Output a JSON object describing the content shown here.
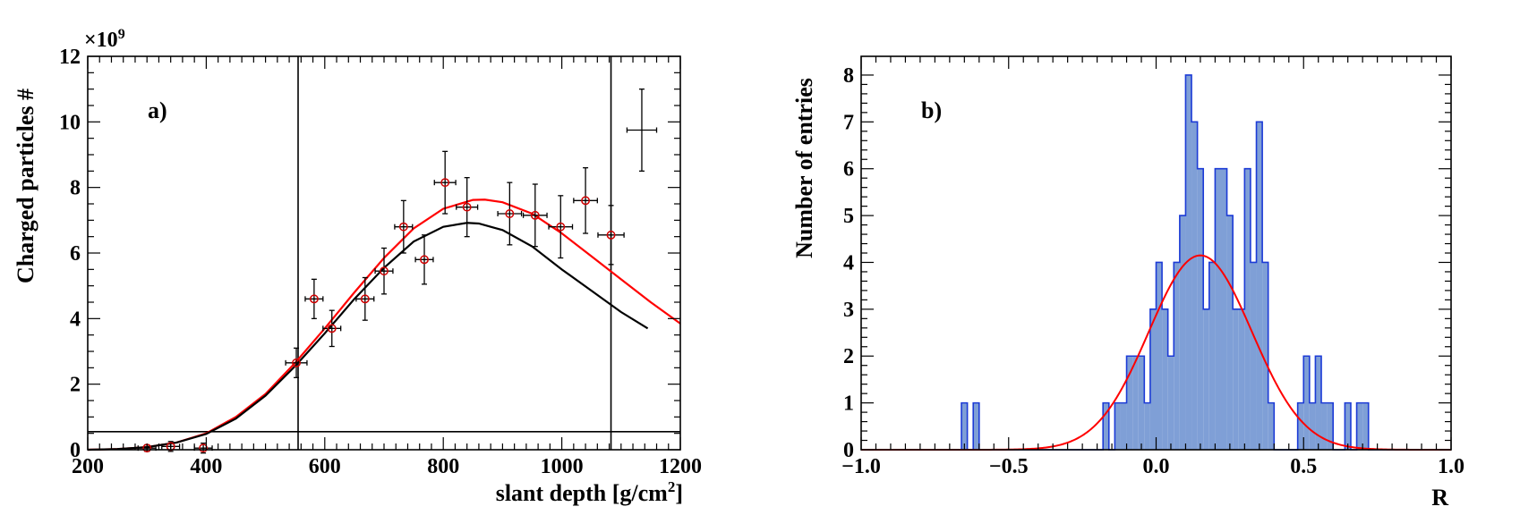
{
  "chart_data": [
    {
      "type": "scatter",
      "panel_label": "a)",
      "xlabel_main": "slant depth [g/cm",
      "xlabel_sup": "2",
      "xlabel_end": "]",
      "ylabel": "Charged particles #",
      "y_multiplier": "×10",
      "y_multiplier_exp": "9",
      "xlim": [
        200,
        1200
      ],
      "ylim": [
        0,
        12
      ],
      "x_ticks": [
        200,
        400,
        600,
        800,
        1000,
        1200
      ],
      "x_tick_labels": [
        "200",
        "400",
        "600",
        "800",
        "1000",
        "1200"
      ],
      "y_ticks": [
        0,
        2,
        4,
        6,
        8,
        10,
        12
      ],
      "y_tick_labels": [
        "0",
        "2",
        "4",
        "6",
        "8",
        "10",
        "12"
      ],
      "vertical_lines": [
        555,
        1083
      ],
      "horizontal_line": 0.55,
      "series": [
        {
          "name": "data",
          "color": "#d00000",
          "points": [
            {
              "x": 300,
              "y": 0.05,
              "xerr": 15,
              "yerr": 0.1
            },
            {
              "x": 340,
              "y": 0.1,
              "xerr": 15,
              "yerr": 0.15
            },
            {
              "x": 395,
              "y": 0.05,
              "xerr": 15,
              "yerr": 0.15
            },
            {
              "x": 552,
              "y": 2.65,
              "xerr": 18,
              "yerr": 0.45
            },
            {
              "x": 582,
              "y": 4.6,
              "xerr": 15,
              "yerr": 0.6
            },
            {
              "x": 612,
              "y": 3.7,
              "xerr": 15,
              "yerr": 0.55
            },
            {
              "x": 668,
              "y": 4.6,
              "xerr": 15,
              "yerr": 0.65
            },
            {
              "x": 700,
              "y": 5.45,
              "xerr": 15,
              "yerr": 0.7
            },
            {
              "x": 733,
              "y": 6.8,
              "xerr": 15,
              "yerr": 0.8
            },
            {
              "x": 768,
              "y": 5.8,
              "xerr": 15,
              "yerr": 0.75
            },
            {
              "x": 803,
              "y": 8.15,
              "xerr": 18,
              "yerr": 0.95
            },
            {
              "x": 840,
              "y": 7.4,
              "xerr": 18,
              "yerr": 0.9
            },
            {
              "x": 912,
              "y": 7.2,
              "xerr": 20,
              "yerr": 0.95
            },
            {
              "x": 955,
              "y": 7.15,
              "xerr": 20,
              "yerr": 0.95
            },
            {
              "x": 998,
              "y": 6.8,
              "xerr": 20,
              "yerr": 0.95
            },
            {
              "x": 1040,
              "y": 7.6,
              "xerr": 20,
              "yerr": 1.0
            },
            {
              "x": 1083,
              "y": 6.55,
              "xerr": 22,
              "yerr": 0.9
            }
          ]
        },
        {
          "name": "outlier",
          "color": "#000000",
          "points": [
            {
              "x": 1135,
              "y": 9.75,
              "xerr": 25,
              "yerr": 1.25
            }
          ]
        }
      ],
      "curves": [
        {
          "name": "red_fit",
          "color": "#ff0000",
          "x": [
            200,
            250,
            300,
            350,
            400,
            450,
            500,
            550,
            600,
            650,
            700,
            750,
            800,
            850,
            870,
            900,
            950,
            1000,
            1050,
            1100,
            1150,
            1200
          ],
          "y": [
            0.0,
            0.02,
            0.08,
            0.22,
            0.5,
            1.0,
            1.7,
            2.65,
            3.7,
            4.8,
            5.85,
            6.75,
            7.35,
            7.62,
            7.63,
            7.55,
            7.2,
            6.6,
            5.9,
            5.2,
            4.5,
            3.85
          ]
        },
        {
          "name": "black_fit",
          "color": "#000000",
          "x": [
            200,
            250,
            300,
            350,
            400,
            450,
            500,
            550,
            600,
            650,
            700,
            750,
            800,
            840,
            860,
            900,
            950,
            1000,
            1050,
            1100,
            1145
          ],
          "y": [
            0.0,
            0.02,
            0.08,
            0.22,
            0.48,
            0.95,
            1.65,
            2.55,
            3.55,
            4.6,
            5.55,
            6.35,
            6.8,
            6.92,
            6.9,
            6.7,
            6.2,
            5.5,
            4.85,
            4.2,
            3.7
          ]
        }
      ]
    },
    {
      "type": "histogram",
      "panel_label": "b)",
      "xlabel": "R",
      "ylabel": "Number of entries",
      "xlim": [
        -1.0,
        1.0
      ],
      "ylim": [
        0,
        8.4
      ],
      "x_ticks": [
        -1.0,
        -0.5,
        0.0,
        0.5,
        1.0
      ],
      "x_tick_labels": [
        "−1.0",
        "−0.5",
        "0.0",
        "0.5",
        "1.0"
      ],
      "y_ticks": [
        0,
        1,
        2,
        3,
        4,
        5,
        6,
        7,
        8
      ],
      "y_tick_labels": [
        "0",
        "1",
        "2",
        "3",
        "4",
        "5",
        "6",
        "7",
        "8"
      ],
      "bin_start": -1.0,
      "bin_width": 0.02,
      "counts": [
        0,
        0,
        0,
        0,
        0,
        0,
        0,
        0,
        0,
        0,
        0,
        0,
        0,
        0,
        0,
        0,
        0,
        1,
        0,
        1,
        0,
        0,
        0,
        0,
        0,
        0,
        0,
        0,
        0,
        0,
        0,
        0,
        0,
        0,
        0,
        0,
        0,
        0,
        0,
        0,
        0,
        1,
        0,
        1,
        1,
        2,
        2,
        2,
        1,
        3,
        4,
        3,
        2,
        4,
        5,
        8,
        7,
        6,
        3,
        4,
        6,
        6,
        5,
        3,
        3,
        6,
        4,
        7,
        4,
        1,
        0,
        0,
        0,
        0,
        1,
        2,
        1,
        2,
        1,
        1,
        0,
        0,
        1,
        0,
        1,
        1,
        0,
        0,
        0,
        0,
        0,
        0,
        0,
        0,
        0,
        0,
        0,
        0,
        0,
        0
      ],
      "fill_color": "#7f9fd6",
      "edge_color": "#1c3bd6",
      "curve": {
        "name": "gaussian_fit",
        "color": "#ff0000",
        "amplitude": 4.15,
        "mean": 0.15,
        "sigma": 0.175
      }
    }
  ]
}
